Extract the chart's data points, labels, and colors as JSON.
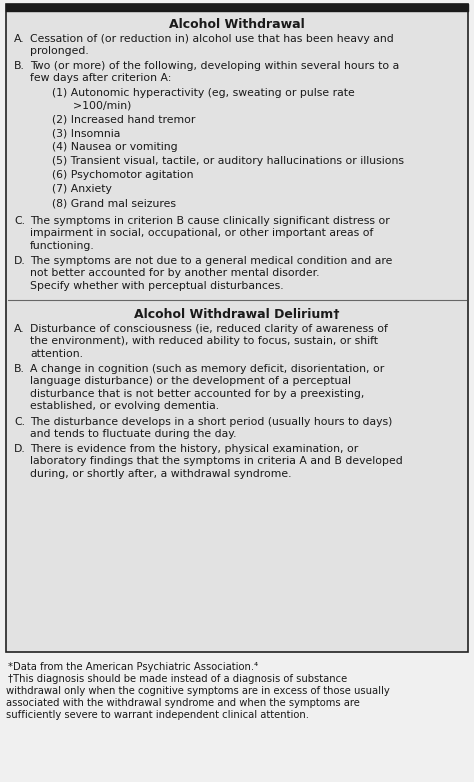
{
  "bg_color": "#e0e0e0",
  "box_bg_color": "#e2e2e2",
  "white_bg": "#f0f0f0",
  "border_color": "#222222",
  "text_color": "#1a1a1a",
  "title_color": "#111111",
  "section1_title": "Alcohol Withdrawal",
  "section2_title": "Alcohol Withdrawal Delirium†",
  "footnote1": "*Data from the American Psychiatric Association.⁴",
  "footnote2": "†This diagnosis should be made instead of a diagnosis of substance",
  "footnote3": "withdrawal only when the cognitive symptoms are in excess of those usually",
  "footnote4": "associated with the withdrawal syndrome and when the symptoms are",
  "footnote5": "sufficiently severe to warrant independent clinical attention."
}
